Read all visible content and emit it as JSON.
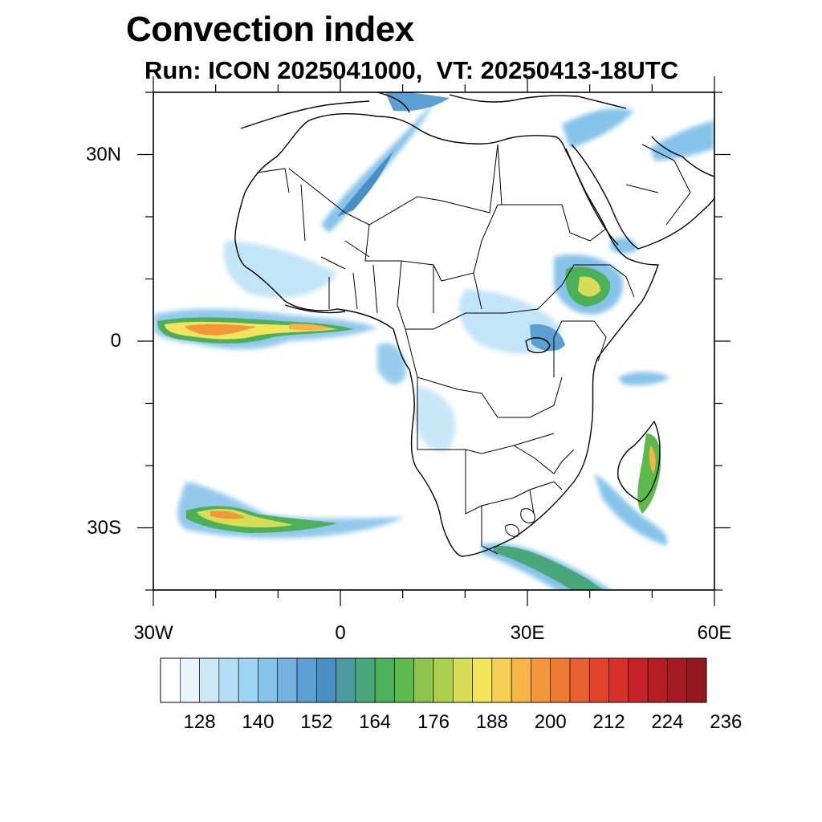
{
  "title": "Convection index",
  "subtitle": "Run: ICON 2025041000,  VT: 20250413-18UTC",
  "map": {
    "lon_range": [
      -30,
      60
    ],
    "lat_range": [
      -40,
      40
    ],
    "lon_ticks": [
      {
        "value": -30,
        "label": "30W"
      },
      {
        "value": 0,
        "label": "0"
      },
      {
        "value": 30,
        "label": "30E"
      },
      {
        "value": 60,
        "label": "60E"
      }
    ],
    "lat_ticks": [
      {
        "value": 30,
        "label": "30N"
      },
      {
        "value": 0,
        "label": "0"
      },
      {
        "value": -30,
        "label": "30S"
      }
    ],
    "colors": {
      "coast": "#000000",
      "frame": "#000000"
    }
  },
  "colorbar": {
    "colors": [
      "#ffffff",
      "#e9f4fb",
      "#cde8f7",
      "#b3def6",
      "#9dd5f4",
      "#86c3ea",
      "#74b0e0",
      "#5b9fd3",
      "#4a8fc4",
      "#4b9b9e",
      "#4aa67b",
      "#4caf5a",
      "#5eb94c",
      "#8dc44c",
      "#aed04f",
      "#d8dd56",
      "#f3e55b",
      "#f7cf55",
      "#f7b446",
      "#f4973c",
      "#ef7a35",
      "#ea5f2e",
      "#e1442b",
      "#d63028",
      "#c72227",
      "#b51c24",
      "#a31a22",
      "#921a1f"
    ],
    "labels": [
      "128",
      "140",
      "152",
      "164",
      "176",
      "188",
      "200",
      "212",
      "224",
      "236"
    ],
    "label_levels": [
      128,
      140,
      152,
      164,
      176,
      188,
      200,
      212,
      224,
      236
    ]
  }
}
